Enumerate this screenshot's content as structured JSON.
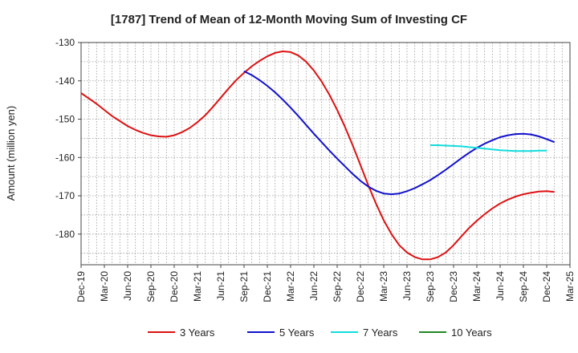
{
  "chart_data": {
    "type": "line",
    "title": "[1787]  Trend of Mean of 12-Month Moving Sum of Investing CF",
    "xlabel": "",
    "ylabel": "Amount (million yen)",
    "ylim": [
      -188,
      -130
    ],
    "yticks": [
      -130,
      -140,
      -150,
      -160,
      -170,
      -180
    ],
    "x_start": "Dec-19",
    "x_end": "Mar-25",
    "x_ticks": [
      "Dec-19",
      "Mar-20",
      "Jun-20",
      "Sep-20",
      "Dec-20",
      "Mar-21",
      "Jun-21",
      "Sep-21",
      "Dec-21",
      "Mar-22",
      "Jun-22",
      "Sep-22",
      "Dec-22",
      "Mar-23",
      "Jun-23",
      "Sep-23",
      "Dec-23",
      "Mar-24",
      "Jun-24",
      "Sep-24",
      "Dec-24",
      "Mar-25"
    ],
    "grid": true,
    "legend_position": "bottom",
    "series": [
      {
        "name": "3 Years",
        "color": "#dd1111",
        "start_month_index": 0,
        "values": [
          -143.2,
          -144.6,
          -146.0,
          -147.6,
          -149.2,
          -150.5,
          -151.8,
          -152.8,
          -153.6,
          -154.2,
          -154.5,
          -154.6,
          -154.2,
          -153.4,
          -152.3,
          -150.8,
          -149.0,
          -146.8,
          -144.4,
          -142.0,
          -139.8,
          -137.9,
          -136.2,
          -134.8,
          -133.6,
          -132.7,
          -132.3,
          -132.5,
          -133.4,
          -135.0,
          -137.3,
          -140.2,
          -143.6,
          -147.6,
          -152.0,
          -156.8,
          -162.0,
          -167.2,
          -172.0,
          -176.4,
          -180.0,
          -182.9,
          -184.8,
          -186.0,
          -186.6,
          -186.6,
          -186.0,
          -184.8,
          -182.9,
          -180.6,
          -178.4,
          -176.5,
          -174.8,
          -173.3,
          -172.0,
          -171.0,
          -170.2,
          -169.6,
          -169.2,
          -168.9,
          -168.8,
          -169.0
        ]
      },
      {
        "name": "5 Years",
        "color": "#1111cc",
        "start_month_index": 21,
        "values": [
          -137.5,
          -138.5,
          -139.8,
          -141.3,
          -143.0,
          -144.9,
          -147.0,
          -149.2,
          -151.5,
          -153.8,
          -156.0,
          -158.2,
          -160.3,
          -162.3,
          -164.3,
          -166.1,
          -167.6,
          -168.7,
          -169.4,
          -169.6,
          -169.4,
          -168.8,
          -168.0,
          -167.0,
          -165.9,
          -164.6,
          -163.2,
          -161.7,
          -160.2,
          -158.8,
          -157.5,
          -156.4,
          -155.5,
          -154.7,
          -154.2,
          -153.9,
          -153.8,
          -154.0,
          -154.5,
          -155.2,
          -156.0
        ]
      },
      {
        "name": "7 Years",
        "color": "#11dddd",
        "start_month_index": 45,
        "values": [
          -156.8,
          -156.8,
          -156.9,
          -157.0,
          -157.1,
          -157.3,
          -157.5,
          -157.7,
          -157.9,
          -158.1,
          -158.2,
          -158.3,
          -158.3,
          -158.3,
          -158.2,
          -158.2
        ]
      },
      {
        "name": "10 Years",
        "color": "#228822",
        "start_month_index": 0,
        "values": []
      }
    ]
  }
}
